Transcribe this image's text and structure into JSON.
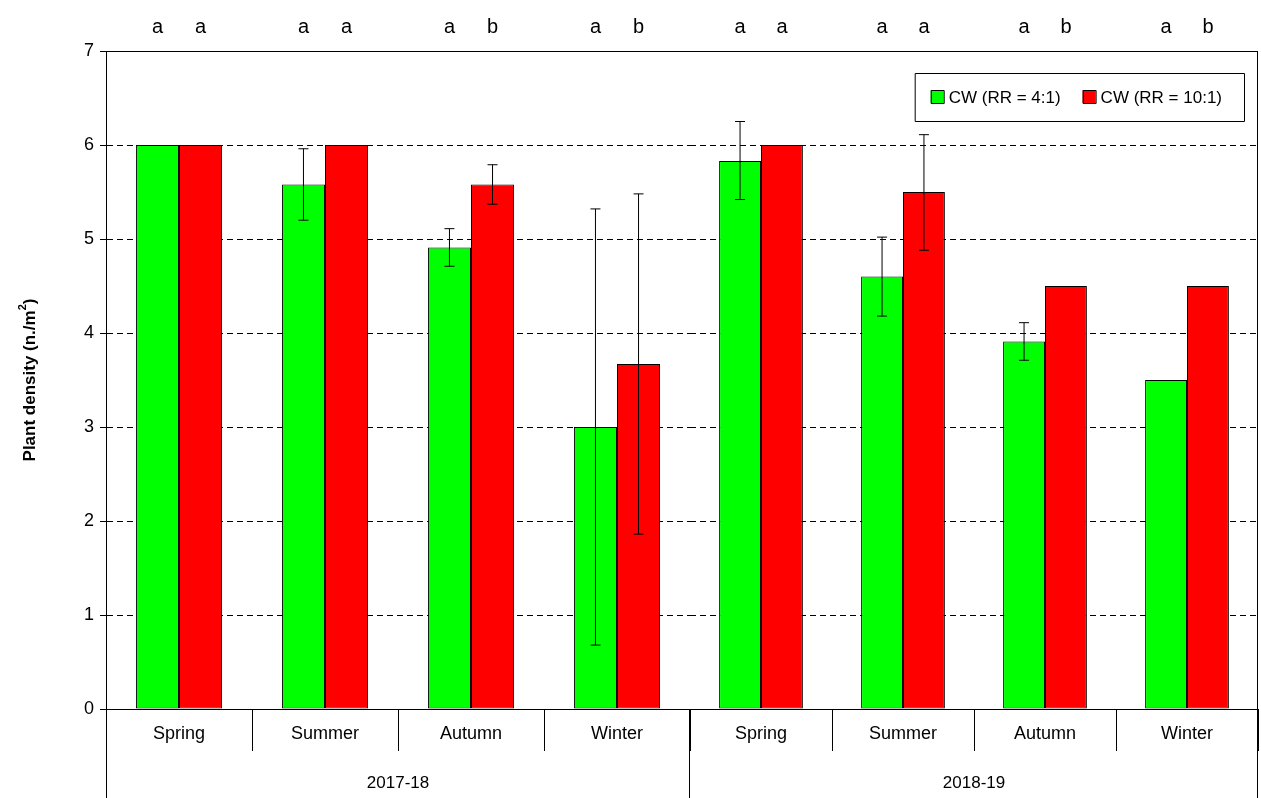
{
  "chart_data": [
    {
      "type": "bar",
      "xlabel": "2017-18",
      "ylabel": "Plant density (n./m$^{2}$)",
      "categories": [
        "Spring",
        "Summer",
        "Autumn",
        "Winter"
      ],
      "series": [
        {
          "color": "#00ff00",
          "values": [
            6,
            5.58,
            4.91,
            3.0
          ],
          "errors": [
            null,
            [
              5.2,
              5.96
            ],
            [
              4.71,
              5.11
            ],
            [
              0.68,
              5.32
            ]
          ]
        },
        {
          "color": "#ff0000",
          "values": [
            6,
            6,
            5.58,
            3.67
          ],
          "errors": [
            null,
            null,
            [
              5.37,
              5.79
            ],
            [
              1.86,
              5.48
            ]
          ]
        }
      ],
      "ylim": [
        0,
        7
      ],
      "yticks": [
        0,
        1,
        2,
        3,
        4,
        5,
        6,
        7
      ],
      "grid": "y",
      "annotations": [
        "a",
        "a",
        "a",
        "a",
        "a",
        "b",
        "a",
        "b"
      ]
    },
    {
      "type": "bar",
      "xlabel": "2018-19",
      "categories": [
        "Spring",
        "Summer",
        "Autumn",
        "Winter"
      ],
      "series": [
        {
          "name": "CW (RR = 4:1)",
          "color": "#00ff00",
          "values": [
            5.83,
            4.6,
            3.91,
            3.5
          ],
          "errors": [
            [
              5.42,
              6.25
            ],
            [
              4.18,
              5.02
            ],
            [
              3.71,
              4.11
            ],
            null
          ]
        },
        {
          "name": "CW (RR = 10:1)",
          "color": "#ff0000",
          "values": [
            6,
            5.5,
            4.5,
            4.5
          ],
          "errors": [
            null,
            [
              4.88,
              6.11
            ],
            null,
            null
          ]
        }
      ],
      "ylim": [
        0,
        7
      ],
      "yticks": [
        0,
        1,
        2,
        3,
        4,
        5,
        6,
        7
      ],
      "grid": "y",
      "legend": "top right",
      "tick_labels": "x",
      "annotations": [
        "a",
        "a",
        "a",
        "a",
        "a",
        "b",
        "a",
        "b"
      ]
    }
  ]
}
